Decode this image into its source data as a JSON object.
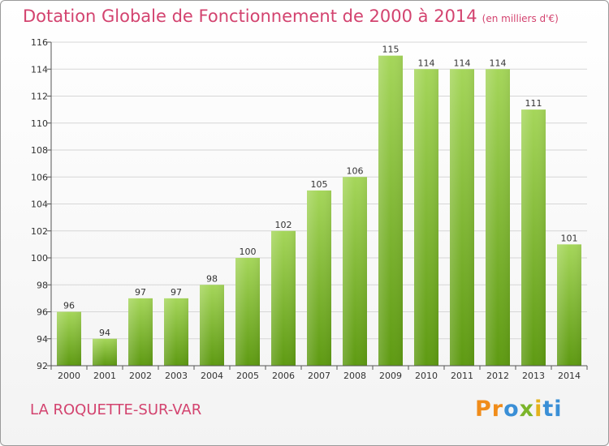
{
  "chart_data": {
    "type": "bar",
    "title": "Dotation Globale de Fonctionnement de 2000 à 2014",
    "subtitle": "(en milliers d'€)",
    "categories": [
      "2000",
      "2001",
      "2002",
      "2003",
      "2004",
      "2005",
      "2006",
      "2007",
      "2008",
      "2009",
      "2010",
      "2011",
      "2012",
      "2013",
      "2014"
    ],
    "values": [
      96,
      94,
      97,
      97,
      98,
      100,
      102,
      105,
      106,
      115,
      114,
      114,
      114,
      111,
      101
    ],
    "ylim": [
      92,
      116
    ],
    "yticks": [
      92,
      94,
      96,
      98,
      100,
      102,
      104,
      106,
      108,
      110,
      112,
      114,
      116
    ],
    "xlabel": "",
    "ylabel": "",
    "grid": true
  },
  "footer": {
    "place": "LA ROQUETTE-SUR-VAR",
    "logo_letters": [
      "Pr",
      "o",
      "x",
      "i",
      "ti"
    ]
  },
  "colors": {
    "title": "#d3436f",
    "bar_light": "#a5d65a",
    "bar_dark": "#5e9a12"
  }
}
